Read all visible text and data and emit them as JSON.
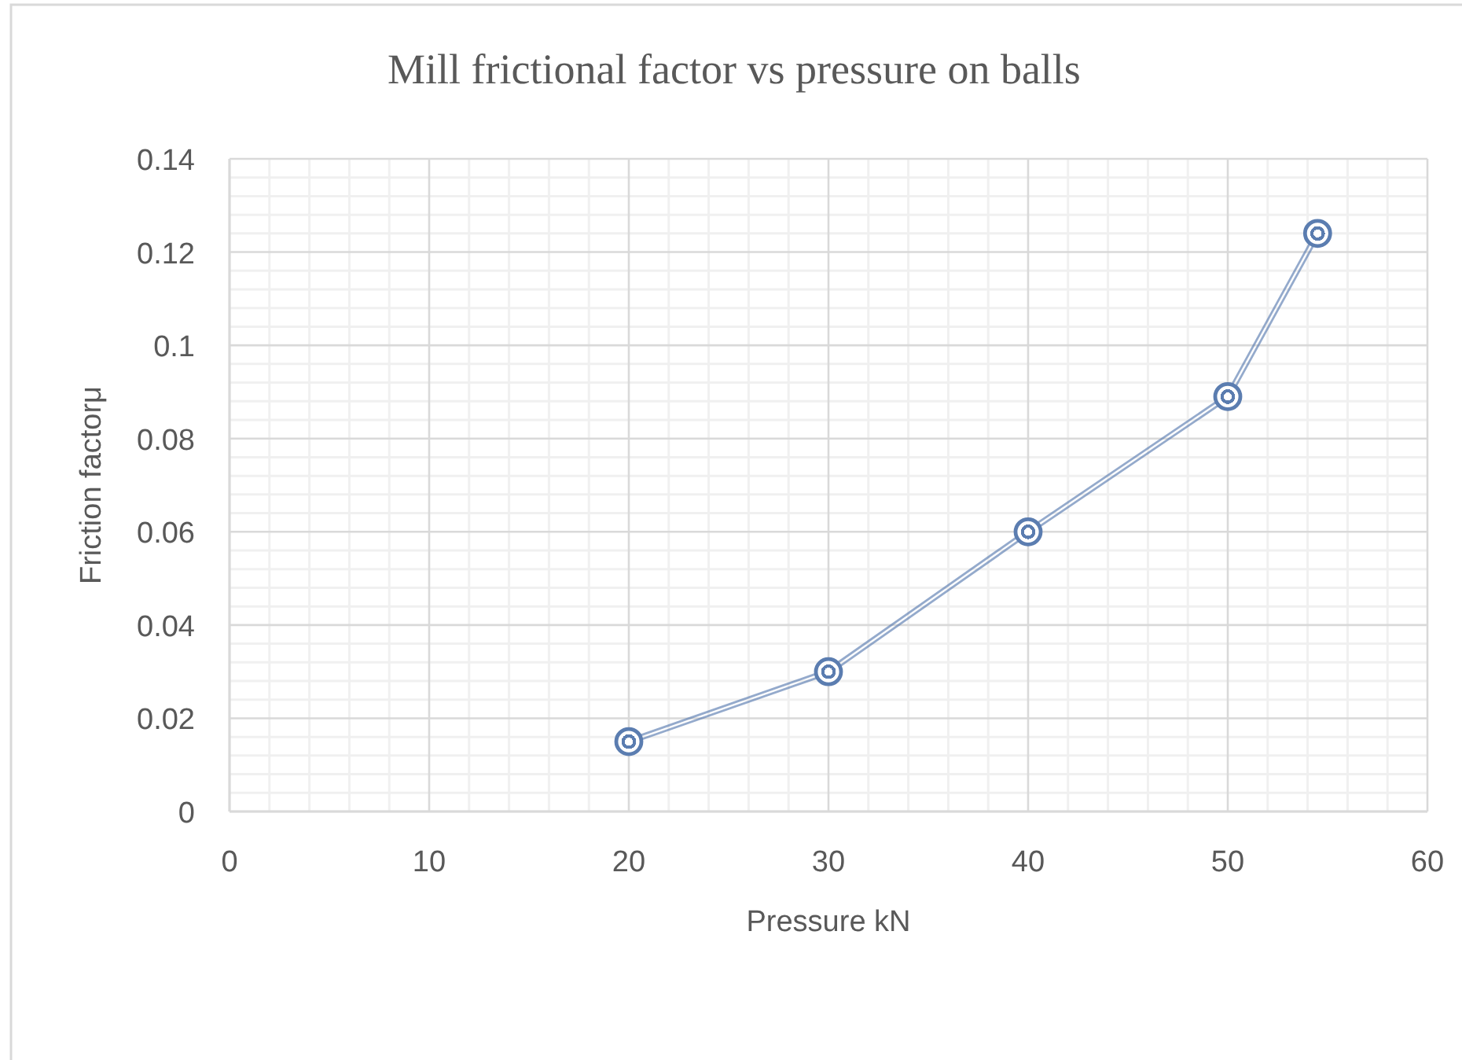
{
  "chart_data": {
    "type": "line",
    "title": "Mill frictional factor vs pressure on balls",
    "xlabel": "Pressure kN",
    "ylabel": "Friction factorμ",
    "x": [
      20,
      30,
      40,
      50,
      54.5
    ],
    "series": [
      {
        "color": "#5b7db0",
        "values": [
          0.015,
          0.03,
          0.06,
          0.089,
          0.124
        ]
      }
    ],
    "xlim": [
      0,
      60
    ],
    "ylim": [
      0,
      0.14
    ],
    "xticks": [
      0,
      10,
      20,
      30,
      40,
      50,
      60
    ],
    "yticks": [
      0,
      0.02,
      0.04,
      0.06,
      0.08,
      0.1,
      0.12,
      0.14
    ],
    "grid": true,
    "marker": "circle",
    "line_style": "solid"
  }
}
